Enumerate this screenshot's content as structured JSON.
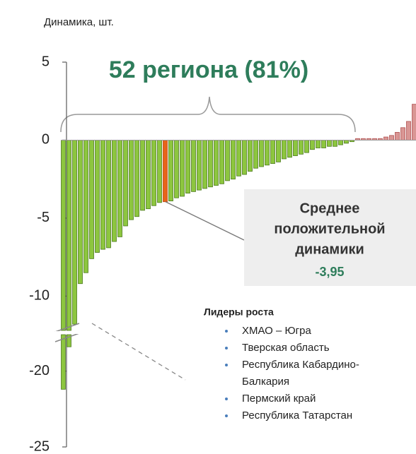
{
  "chart_data": {
    "type": "bar",
    "subtitle": "Динамика, шт.",
    "headline": "52 региона (81%)",
    "values": [
      -21.2,
      -18.4,
      -11.8,
      -9.2,
      -8.5,
      -7.6,
      -7.2,
      -7.0,
      -6.9,
      -6.5,
      -6.2,
      -5.5,
      -5.1,
      -4.9,
      -4.5,
      -4.4,
      -4.2,
      -4.0,
      -3.95,
      -3.9,
      -3.7,
      -3.6,
      -3.4,
      -3.3,
      -3.2,
      -3.1,
      -3.0,
      -2.9,
      -2.8,
      -2.6,
      -2.5,
      -2.3,
      -2.2,
      -2.0,
      -1.8,
      -1.7,
      -1.6,
      -1.5,
      -1.4,
      -1.2,
      -1.1,
      -1.0,
      -0.9,
      -0.8,
      -0.6,
      -0.5,
      -0.5,
      -0.4,
      -0.4,
      -0.3,
      -0.2,
      -0.1,
      0.1,
      0.1,
      0.1,
      0.1,
      0.1,
      0.2,
      0.3,
      0.5,
      0.8,
      1.2,
      2.3,
      2.6
    ],
    "color_negative": "#8dc63f",
    "color_positive": "#d99694",
    "highlight_color": "#e8641b",
    "axis_segments": [
      {
        "ylim": [
          -12.2,
          5
        ]
      },
      {
        "ylim": [
          -25,
          -17.6
        ]
      }
    ],
    "yticks": [
      5,
      0,
      -5,
      -10,
      -20,
      -25
    ],
    "mean_annotation": {
      "lines": [
        "Среднее",
        "положительной",
        "динамики"
      ],
      "value": -3.95,
      "value_label": "-3,95"
    },
    "leaders": {
      "title": "Лидеры роста",
      "items": [
        "ХМАО – Югра",
        "Тверская область",
        [
          "Республика Кабардино-",
          "Балкария"
        ],
        "Пермский край",
        "Республика Татарстан"
      ]
    }
  }
}
